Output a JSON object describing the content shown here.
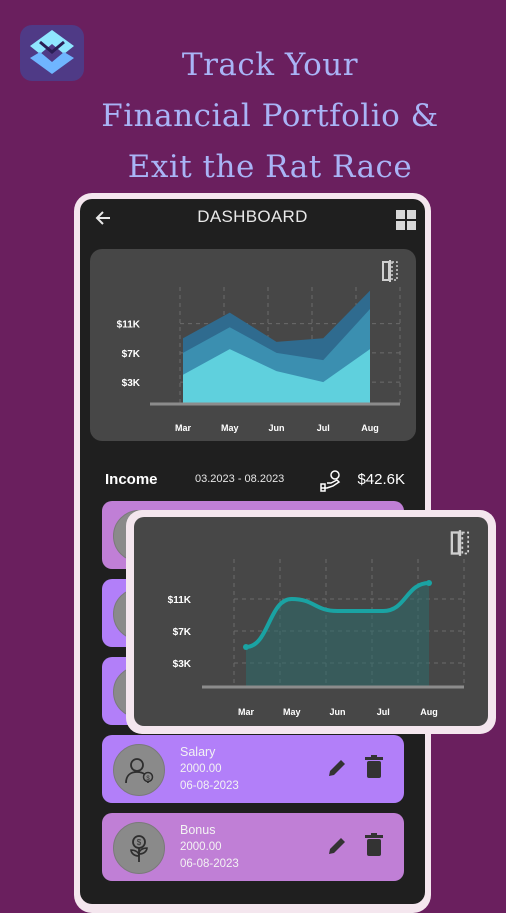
{
  "promo": {
    "headline_lines": [
      "Track Your",
      "Financial Portfolio &",
      "Exit the Rat Race"
    ]
  },
  "colors": {
    "background": "#6a1f5e",
    "headline": "#a9b4f6",
    "item_purple": "#b27ff9",
    "item_pink": "#c07fd6",
    "area_dark": "#2f6b8f",
    "area_mid": "#3b8fb0",
    "area_light": "#5fd0dd",
    "line_teal": "#1aa3a3"
  },
  "dashboard": {
    "title": "DASHBOARD",
    "back_icon": "arrow-left-icon",
    "menu_icon": "grid-icon"
  },
  "chart_data": [
    {
      "type": "area",
      "categories": [
        "Mar",
        "May",
        "Jun",
        "Jul",
        "Aug"
      ],
      "yticks": [
        "$11K",
        "$7K",
        "$3K"
      ],
      "series": [
        {
          "values": [
            9,
            12.5,
            8.5,
            9,
            15.5
          ]
        },
        {
          "values": [
            7,
            10.5,
            7,
            6,
            13
          ]
        },
        {
          "values": [
            4,
            7.5,
            4.5,
            3,
            7.5
          ]
        }
      ],
      "ylim": [
        0,
        16
      ]
    },
    {
      "type": "area",
      "categories": [
        "Mar",
        "May",
        "Jun",
        "Jul",
        "Aug"
      ],
      "yticks": [
        "$11K",
        "$7K",
        "$3K"
      ],
      "series": [
        {
          "values": [
            5,
            11,
            9.5,
            9.5,
            13
          ]
        }
      ],
      "ylim": [
        0,
        16
      ]
    }
  ],
  "income": {
    "label": "Income",
    "range": "03.2023 - 08.2023",
    "total": "$42.6K"
  },
  "items": [
    {
      "title": "",
      "amount": "",
      "date": "",
      "style": "pink"
    },
    {
      "title": "",
      "amount": "",
      "date": "",
      "style": "purple"
    },
    {
      "title": "",
      "amount": "",
      "date": "",
      "style": "purple"
    },
    {
      "title": "Salary",
      "amount": "2000.00",
      "date": "06-08-2023",
      "style": "purple",
      "icon": "worker-icon"
    },
    {
      "title": "Bonus",
      "amount": "2000.00",
      "date": "06-08-2023",
      "style": "pink",
      "icon": "money-plant-icon"
    }
  ]
}
